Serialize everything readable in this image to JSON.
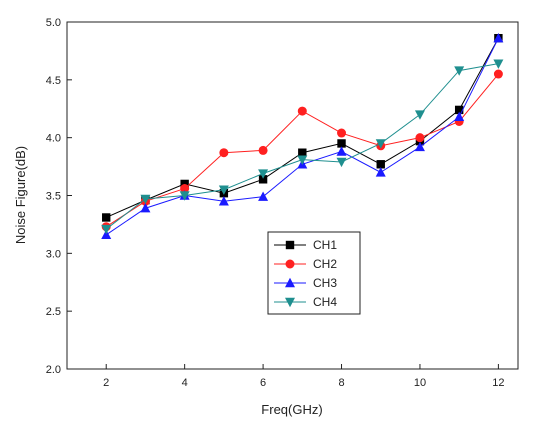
{
  "chart_data": {
    "type": "line",
    "xlabel": "Freq(GHz)",
    "ylabel": "Noise Figure(dB)",
    "xlim": [
      1,
      12.5
    ],
    "ylim": [
      2.0,
      5.0
    ],
    "xticks": [
      2,
      4,
      6,
      8,
      10,
      12
    ],
    "yticks": [
      2.0,
      2.5,
      3.0,
      3.5,
      4.0,
      4.5,
      5.0
    ],
    "x": [
      2,
      3,
      4,
      5,
      6,
      7,
      8,
      9,
      10,
      11,
      12
    ],
    "legend": "center",
    "series": [
      {
        "name": "CH1",
        "color": "#000000",
        "marker": "square",
        "values": [
          3.31,
          3.46,
          3.6,
          3.52,
          3.64,
          3.87,
          3.95,
          3.77,
          3.97,
          4.24,
          4.86
        ]
      },
      {
        "name": "CH2",
        "color": "#ff2020",
        "marker": "circle",
        "values": [
          3.23,
          3.45,
          3.56,
          3.87,
          3.89,
          4.23,
          4.04,
          3.93,
          4.0,
          4.14,
          4.55
        ]
      },
      {
        "name": "CH3",
        "color": "#1a1aff",
        "marker": "triangle-up",
        "values": [
          3.16,
          3.39,
          3.5,
          3.45,
          3.49,
          3.77,
          3.88,
          3.7,
          3.92,
          4.18,
          4.86
        ]
      },
      {
        "name": "CH4",
        "color": "#1f8f8f",
        "marker": "triangle-down",
        "values": [
          3.21,
          3.47,
          3.5,
          3.55,
          3.69,
          3.81,
          3.79,
          3.95,
          4.2,
          4.58,
          4.64
        ]
      }
    ]
  }
}
